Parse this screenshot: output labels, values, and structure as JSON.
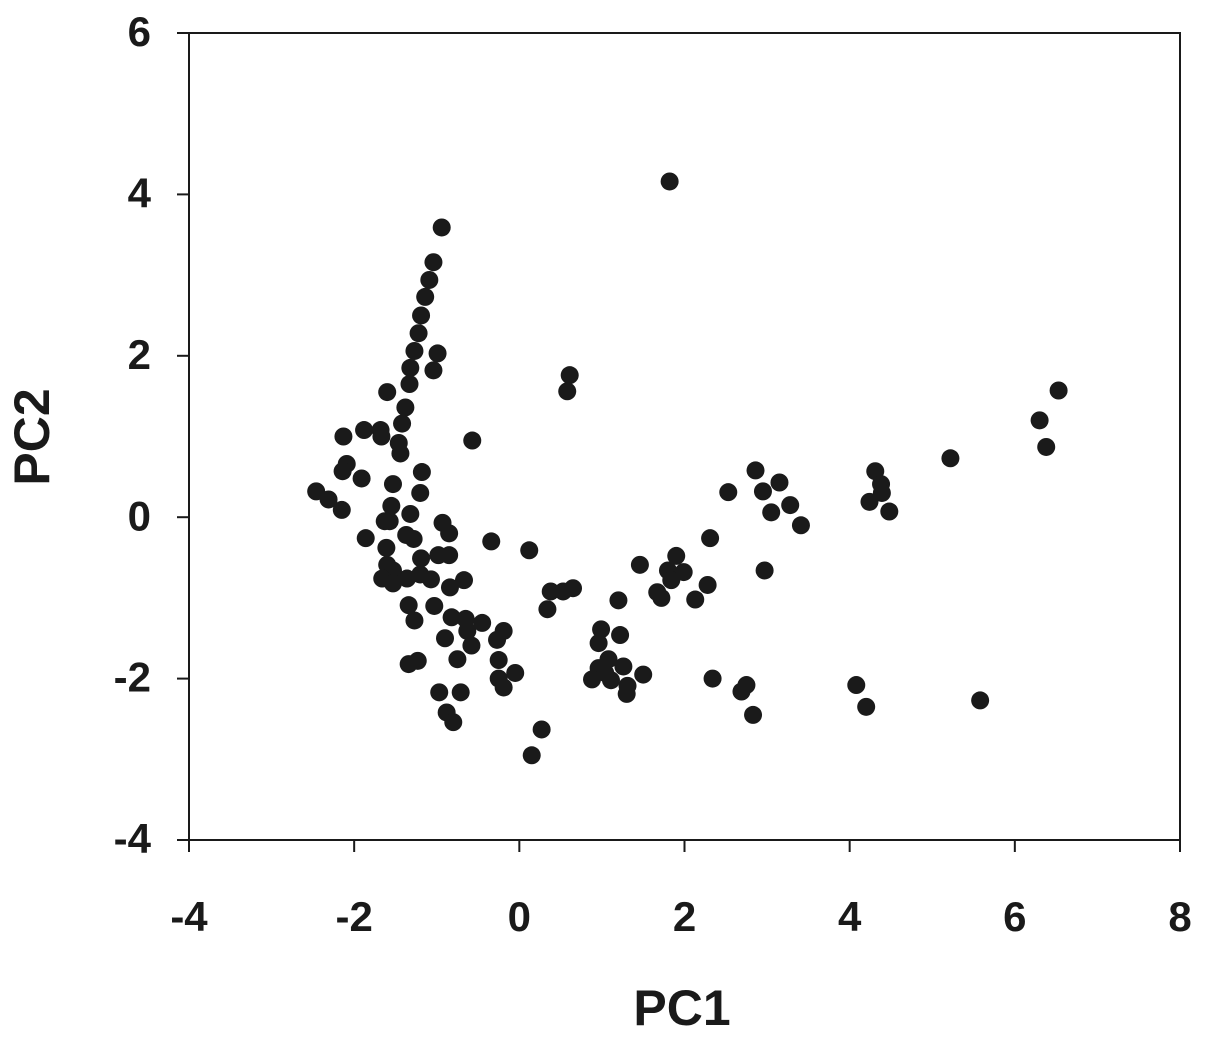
{
  "chart_data": {
    "type": "scatter",
    "x_label": "PC1",
    "y_label": "PC2",
    "color": "#1a1a1a",
    "xlim": [
      -4,
      8
    ],
    "ylim": [
      -4,
      6
    ],
    "xticks": [
      -4,
      -2,
      0,
      2,
      4,
      6,
      8
    ],
    "yticks": [
      -4,
      -2,
      0,
      2,
      4,
      6
    ],
    "x": [
      1.82,
      -0.94,
      -1.04,
      -1.09,
      -1.14,
      -1.19,
      -1.22,
      -1.27,
      -0.99,
      -1.04,
      -1.32,
      -1.33,
      -1.6,
      -1.38,
      -1.42,
      0.61,
      0.58,
      -0.57,
      -1.46,
      -1.44,
      -1.88,
      -1.68,
      -1.67,
      -2.13,
      -2.09,
      -2.14,
      -1.91,
      -1.18,
      -1.53,
      -1.2,
      -2.46,
      -2.31,
      -2.15,
      -1.55,
      -1.32,
      -1.57,
      -1.63,
      -0.93,
      -0.85,
      -1.37,
      -1.28,
      -1.86,
      -0.34,
      0.12,
      -1.61,
      -0.98,
      -0.85,
      -1.19,
      -1.6,
      -1.53,
      -1.2,
      -1.36,
      -1.66,
      -1.53,
      -1.07,
      -0.67,
      -0.84,
      0.38,
      0.53,
      0.65,
      0.34,
      -1.03,
      -1.34,
      -1.27,
      -0.82,
      -0.65,
      -0.63,
      -0.45,
      -0.19,
      -0.9,
      -0.58,
      -0.27,
      -0.75,
      -0.25,
      -1.34,
      -1.23,
      -0.05,
      -0.25,
      -0.19,
      -0.97,
      -0.71,
      -0.88,
      -0.8,
      0.27,
      0.15,
      1.46,
      1.9,
      1.8,
      1.99,
      1.84,
      1.67,
      1.72,
      2.13,
      2.31,
      2.28,
      1.2,
      0.99,
      1.22,
      0.96,
      1.08,
      1.26,
      0.96,
      1.04,
      0.88,
      1.11,
      1.5,
      1.31,
      1.3,
      2.34,
      2.69,
      2.75,
      2.83,
      2.53,
      2.86,
      2.95,
      3.15,
      3.05,
      3.28,
      3.41,
      2.97,
      4.31,
      4.38,
      4.39,
      4.24,
      4.48,
      5.22,
      6.3,
      6.53,
      6.38,
      4.08,
      4.2,
      5.58
    ],
    "y": [
      4.16,
      3.59,
      3.16,
      2.94,
      2.73,
      2.5,
      2.28,
      2.06,
      2.03,
      1.82,
      1.85,
      1.65,
      1.55,
      1.36,
      1.16,
      1.76,
      1.56,
      0.95,
      0.92,
      0.79,
      1.08,
      1.08,
      1.0,
      1.0,
      0.66,
      0.57,
      0.48,
      0.56,
      0.41,
      0.3,
      0.32,
      0.22,
      0.09,
      0.14,
      0.04,
      -0.05,
      -0.05,
      -0.07,
      -0.2,
      -0.22,
      -0.27,
      -0.26,
      -0.3,
      -0.41,
      -0.38,
      -0.47,
      -0.47,
      -0.51,
      -0.59,
      -0.66,
      -0.71,
      -0.76,
      -0.76,
      -0.82,
      -0.77,
      -0.78,
      -0.87,
      -0.92,
      -0.92,
      -0.88,
      -1.14,
      -1.1,
      -1.09,
      -1.28,
      -1.24,
      -1.26,
      -1.41,
      -1.31,
      -1.41,
      -1.5,
      -1.59,
      -1.52,
      -1.76,
      -1.77,
      -1.82,
      -1.78,
      -1.93,
      -2.0,
      -2.11,
      -2.17,
      -2.17,
      -2.42,
      -2.54,
      -2.63,
      -2.95,
      -0.59,
      -0.48,
      -0.66,
      -0.68,
      -0.78,
      -0.93,
      -1.0,
      -1.02,
      -0.26,
      -0.84,
      -1.03,
      -1.39,
      -1.46,
      -1.56,
      -1.76,
      -1.85,
      -1.87,
      -1.93,
      -2.01,
      -2.02,
      -1.95,
      -2.09,
      -2.19,
      -2.0,
      -2.16,
      -2.08,
      -2.45,
      0.31,
      0.58,
      0.32,
      0.43,
      0.06,
      0.15,
      -0.1,
      -0.66,
      0.57,
      0.41,
      0.3,
      0.19,
      0.07,
      0.73,
      1.2,
      1.57,
      0.87,
      -2.08,
      -2.35,
      -2.27
    ]
  }
}
